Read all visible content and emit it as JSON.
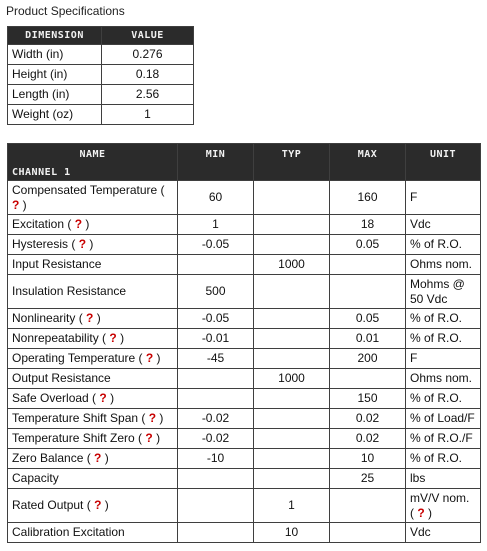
{
  "page_title": "Product Specifications",
  "dimensions": {
    "headers": [
      "DIMENSION",
      "VALUE"
    ],
    "rows": [
      {
        "name": "Width (in)",
        "value": "0.276"
      },
      {
        "name": "Height (in)",
        "value": "0.18"
      },
      {
        "name": "Length (in)",
        "value": "2.56"
      },
      {
        "name": "Weight (oz)",
        "value": "1"
      }
    ]
  },
  "specs": {
    "headers": {
      "name": "NAME",
      "channel": "CHANNEL 1",
      "min": "MIN",
      "typ": "TYP",
      "max": "MAX",
      "unit": "UNIT"
    },
    "rows": [
      {
        "name": "Compensated Temperature",
        "help": "?",
        "min": "60",
        "typ": "",
        "max": "160",
        "unit": "F",
        "unit_help": ""
      },
      {
        "name": "Excitation",
        "help": "?",
        "min": "1",
        "typ": "",
        "max": "18",
        "unit": "Vdc",
        "unit_help": ""
      },
      {
        "name": "Hysteresis",
        "help": "?",
        "min": "-0.05",
        "typ": "",
        "max": "0.05",
        "unit": "% of R.O.",
        "unit_help": ""
      },
      {
        "name": "Input Resistance",
        "help": "",
        "min": "",
        "typ": "1000",
        "max": "",
        "unit": "Ohms nom.",
        "unit_help": ""
      },
      {
        "name": "Insulation Resistance",
        "help": "",
        "min": "500",
        "typ": "",
        "max": "",
        "unit": "Mohms @ 50 Vdc",
        "unit_help": ""
      },
      {
        "name": "Nonlinearity",
        "help": "?",
        "min": "-0.05",
        "typ": "",
        "max": "0.05",
        "unit": "% of R.O.",
        "unit_help": ""
      },
      {
        "name": "Nonrepeatability",
        "help": "?",
        "min": "-0.01",
        "typ": "",
        "max": "0.01",
        "unit": "% of R.O.",
        "unit_help": ""
      },
      {
        "name": "Operating Temperature",
        "help": "?",
        "min": "-45",
        "typ": "",
        "max": "200",
        "unit": "F",
        "unit_help": ""
      },
      {
        "name": "Output Resistance",
        "help": "",
        "min": "",
        "typ": "1000",
        "max": "",
        "unit": "Ohms nom.",
        "unit_help": ""
      },
      {
        "name": "Safe Overload",
        "help": "?",
        "min": "",
        "typ": "",
        "max": "150",
        "unit": "% of R.O.",
        "unit_help": ""
      },
      {
        "name": "Temperature Shift Span",
        "help": "?",
        "min": "-0.02",
        "typ": "",
        "max": "0.02",
        "unit": "% of Load/F",
        "unit_help": ""
      },
      {
        "name": "Temperature Shift Zero",
        "help": "?",
        "min": "-0.02",
        "typ": "",
        "max": "0.02",
        "unit": "% of R.O./F",
        "unit_help": ""
      },
      {
        "name": "Zero Balance",
        "help": "?",
        "min": "-10",
        "typ": "",
        "max": "10",
        "unit": "% of R.O.",
        "unit_help": ""
      },
      {
        "name": "Capacity",
        "help": "",
        "min": "",
        "typ": "",
        "max": "25",
        "unit": "lbs",
        "unit_help": ""
      },
      {
        "name": "Rated Output",
        "help": "?",
        "min": "",
        "typ": "1",
        "max": "",
        "unit": "mV/V nom.",
        "unit_help": "?"
      },
      {
        "name": "Calibration Excitation",
        "help": "",
        "min": "",
        "typ": "10",
        "max": "",
        "unit": "Vdc",
        "unit_help": ""
      }
    ]
  }
}
